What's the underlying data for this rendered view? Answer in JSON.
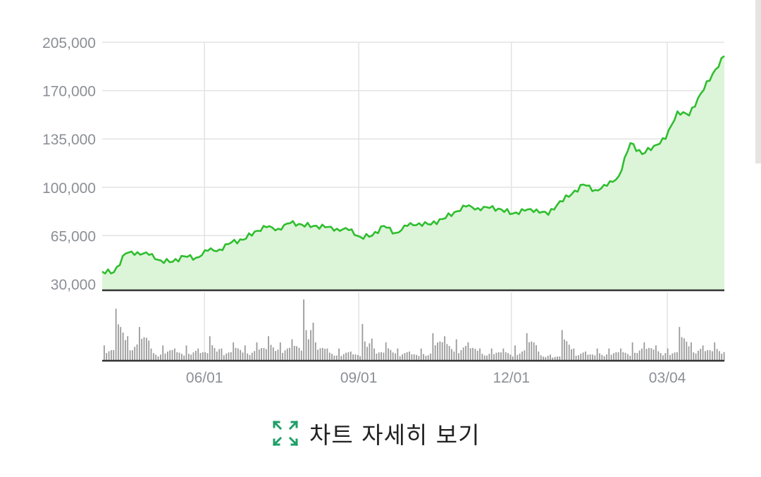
{
  "colors": {
    "line": "#2fbe2f",
    "area": "#dcf5d8",
    "grid": "#e3e3e3",
    "axis": "#333333",
    "volume": "#9a9a9a",
    "icon": "#1f9e67"
  },
  "detail_button": {
    "label": "차트 자세히 보기",
    "icon": "expand-arrows"
  },
  "chart_data": [
    {
      "type": "area",
      "title": "",
      "ylim": [
        30000,
        205000
      ],
      "yticks": [
        30000,
        65000,
        100000,
        135000,
        170000,
        205000
      ],
      "ytick_labels": [
        "30,000",
        "65,000",
        "100,000",
        "135,000",
        "170,000",
        "205,000"
      ],
      "xticks": [
        "2020-06-01",
        "2020-09-01",
        "2020-12-01",
        "2021-03-04"
      ],
      "xtick_labels": [
        "06/01",
        "09/01",
        "12/01",
        "03/04"
      ],
      "grid": true,
      "x": [
        "2020-04-01",
        "2020-04-08",
        "2020-04-15",
        "2020-04-22",
        "2020-04-29",
        "2020-05-06",
        "2020-05-13",
        "2020-05-20",
        "2020-05-27",
        "2020-06-03",
        "2020-06-10",
        "2020-06-17",
        "2020-06-24",
        "2020-07-01",
        "2020-07-08",
        "2020-07-15",
        "2020-07-22",
        "2020-07-29",
        "2020-08-05",
        "2020-08-12",
        "2020-08-19",
        "2020-08-26",
        "2020-09-02",
        "2020-09-09",
        "2020-09-16",
        "2020-09-23",
        "2020-09-30",
        "2020-10-07",
        "2020-10-14",
        "2020-10-21",
        "2020-10-28",
        "2020-11-04",
        "2020-11-11",
        "2020-11-18",
        "2020-11-25",
        "2020-12-02",
        "2020-12-09",
        "2020-12-16",
        "2020-12-23",
        "2020-12-30",
        "2021-01-06",
        "2021-01-13",
        "2021-01-20",
        "2021-01-27",
        "2021-02-03",
        "2021-02-10",
        "2021-02-17",
        "2021-02-24",
        "2021-03-03",
        "2021-03-10",
        "2021-03-17",
        "2021-03-24",
        "2021-03-31",
        "2021-04-07"
      ],
      "series": [
        {
          "values": [
            39000,
            38500,
            52000,
            53000,
            51000,
            47000,
            46000,
            50000,
            49000,
            54000,
            55000,
            60000,
            62000,
            68000,
            71000,
            70000,
            74000,
            73000,
            72000,
            71000,
            70000,
            69000,
            64000,
            65000,
            72000,
            67000,
            72000,
            74000,
            73000,
            77000,
            82000,
            86000,
            85000,
            85000,
            84000,
            81000,
            83000,
            84000,
            80000,
            90000,
            95000,
            102000,
            98000,
            101000,
            108000,
            132000,
            124000,
            130000,
            135000,
            155000,
            152000,
            168000,
            182000,
            195000
          ]
        }
      ]
    },
    {
      "type": "bar",
      "title": "",
      "x": [
        "2020-04-01",
        "2020-04-08",
        "2020-04-15",
        "2020-04-22",
        "2020-04-29",
        "2020-05-06",
        "2020-05-13",
        "2020-05-20",
        "2020-05-27",
        "2020-06-03",
        "2020-06-10",
        "2020-06-17",
        "2020-06-24",
        "2020-07-01",
        "2020-07-08",
        "2020-07-15",
        "2020-07-22",
        "2020-07-29",
        "2020-08-05",
        "2020-08-12",
        "2020-08-19",
        "2020-08-26",
        "2020-09-02",
        "2020-09-09",
        "2020-09-16",
        "2020-09-23",
        "2020-09-30",
        "2020-10-07",
        "2020-10-14",
        "2020-10-21",
        "2020-10-28",
        "2020-11-04",
        "2020-11-11",
        "2020-11-18",
        "2020-11-25",
        "2020-12-02",
        "2020-12-09",
        "2020-12-16",
        "2020-12-23",
        "2020-12-30",
        "2021-01-06",
        "2021-01-13",
        "2021-01-20",
        "2021-01-27",
        "2021-02-03",
        "2021-02-10",
        "2021-02-17",
        "2021-02-24",
        "2021-03-03",
        "2021-03-10",
        "2021-03-17",
        "2021-03-24",
        "2021-03-31",
        "2021-04-07"
      ],
      "values": [
        0.25,
        0.85,
        0.4,
        0.55,
        0.2,
        0.25,
        0.2,
        0.25,
        0.2,
        0.4,
        0.2,
        0.3,
        0.25,
        0.3,
        0.4,
        0.3,
        0.35,
        1.0,
        0.3,
        0.2,
        0.2,
        0.15,
        0.6,
        0.2,
        0.3,
        0.2,
        0.15,
        0.2,
        0.45,
        0.4,
        0.35,
        0.3,
        0.2,
        0.2,
        0.2,
        0.25,
        0.45,
        0.15,
        0.1,
        0.5,
        0.2,
        0.15,
        0.2,
        0.2,
        0.2,
        0.3,
        0.3,
        0.25,
        0.2,
        0.55,
        0.3,
        0.25,
        0.3,
        0.3
      ],
      "note": "relative volume, no axis printed"
    }
  ]
}
